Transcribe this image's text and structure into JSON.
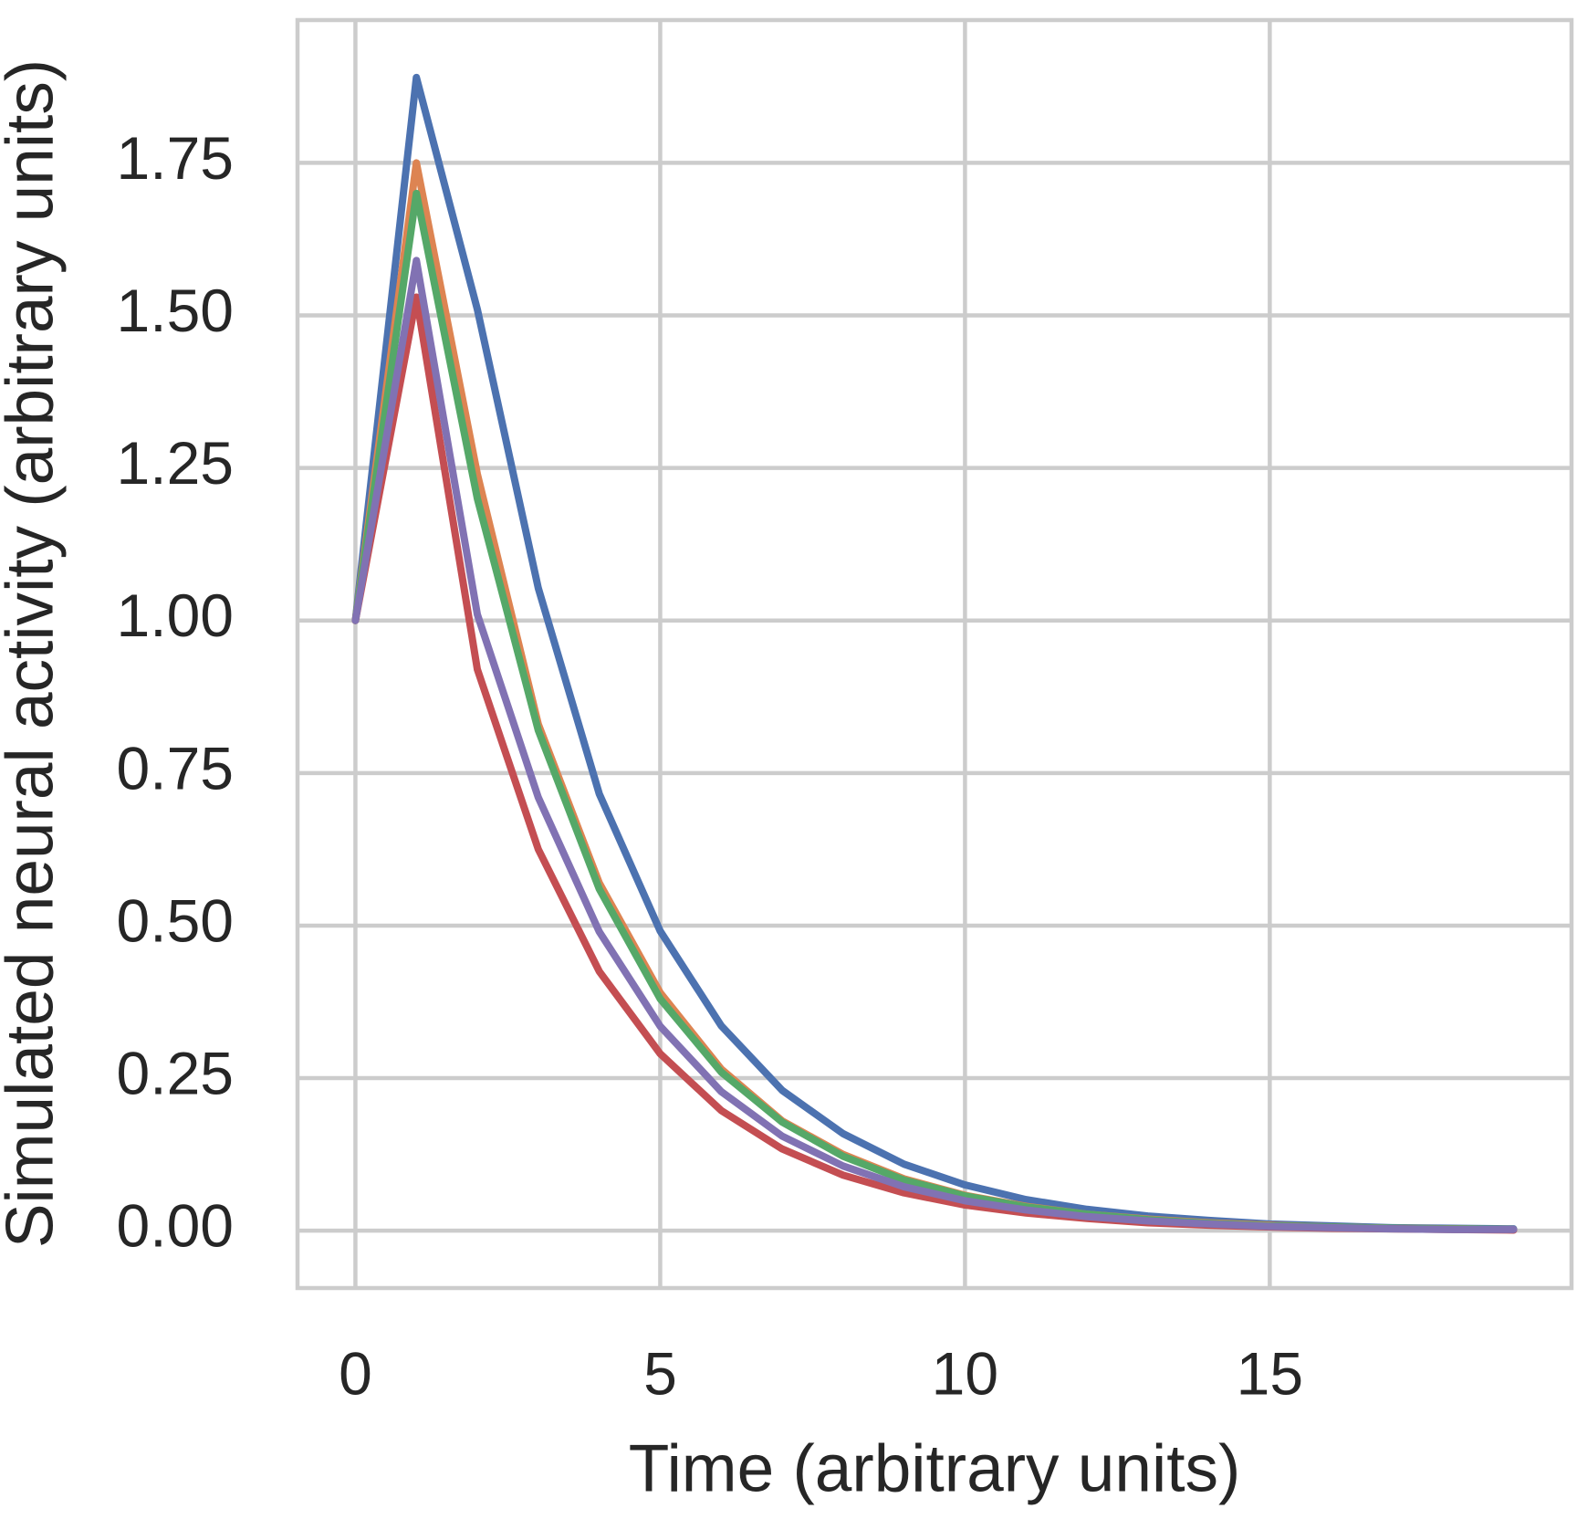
{
  "chart_data": {
    "type": "line",
    "xlabel": "Time (arbitrary units)",
    "ylabel": "Simulated neural activity (arbitrary units)",
    "x": [
      0,
      1,
      2,
      3,
      4,
      5,
      6,
      7,
      8,
      9,
      10,
      11,
      12,
      13,
      14,
      15,
      16,
      17,
      18,
      19
    ],
    "series": [
      {
        "color": "#4c72b0",
        "values": [
          1,
          1.89,
          1.51,
          1.053,
          0.716,
          0.491,
          0.336,
          0.23,
          0.159,
          0.109,
          0.075,
          0.051,
          0.035,
          0.024,
          0.017,
          0.011,
          0.008,
          0.005,
          0.004,
          0.003
        ]
      },
      {
        "color": "#dd8452",
        "values": [
          1,
          1.75,
          1.24,
          0.83,
          0.57,
          0.39,
          0.265,
          0.18,
          0.125,
          0.085,
          0.058,
          0.04,
          0.027,
          0.019,
          0.013,
          0.009,
          0.006,
          0.004,
          0.003,
          0.002
        ]
      },
      {
        "color": "#55a868",
        "values": [
          1,
          1.7,
          1.2,
          0.82,
          0.56,
          0.38,
          0.26,
          0.178,
          0.122,
          0.083,
          0.057,
          0.039,
          0.027,
          0.018,
          0.012,
          0.008,
          0.006,
          0.004,
          0.003,
          0.002
        ]
      },
      {
        "color": "#c44e52",
        "values": [
          1,
          1.53,
          0.92,
          0.625,
          0.425,
          0.29,
          0.197,
          0.134,
          0.091,
          0.062,
          0.042,
          0.029,
          0.02,
          0.013,
          0.009,
          0.006,
          0.004,
          0.003,
          0.002,
          0.001
        ]
      },
      {
        "color": "#8172b3",
        "values": [
          1,
          1.59,
          1.01,
          0.71,
          0.49,
          0.335,
          0.228,
          0.155,
          0.106,
          0.072,
          0.049,
          0.034,
          0.023,
          0.016,
          0.011,
          0.007,
          0.005,
          0.003,
          0.002,
          0.002
        ]
      }
    ],
    "xlim": [
      -0.95,
      19.95
    ],
    "xticks": [
      0,
      5,
      10,
      15
    ],
    "ylim": [
      -0.094,
      1.984
    ],
    "yticks": [
      {
        "value": 0,
        "label": "0.00"
      },
      {
        "value": 0.25,
        "label": "0.25"
      },
      {
        "value": 0.5,
        "label": "0.50"
      },
      {
        "value": 0.75,
        "label": "0.75"
      },
      {
        "value": 1,
        "label": "1.00"
      },
      {
        "value": 1.25,
        "label": "1.25"
      },
      {
        "value": 1.5,
        "label": "1.50"
      },
      {
        "value": 1.75,
        "label": "1.75"
      }
    ],
    "grid": true
  }
}
